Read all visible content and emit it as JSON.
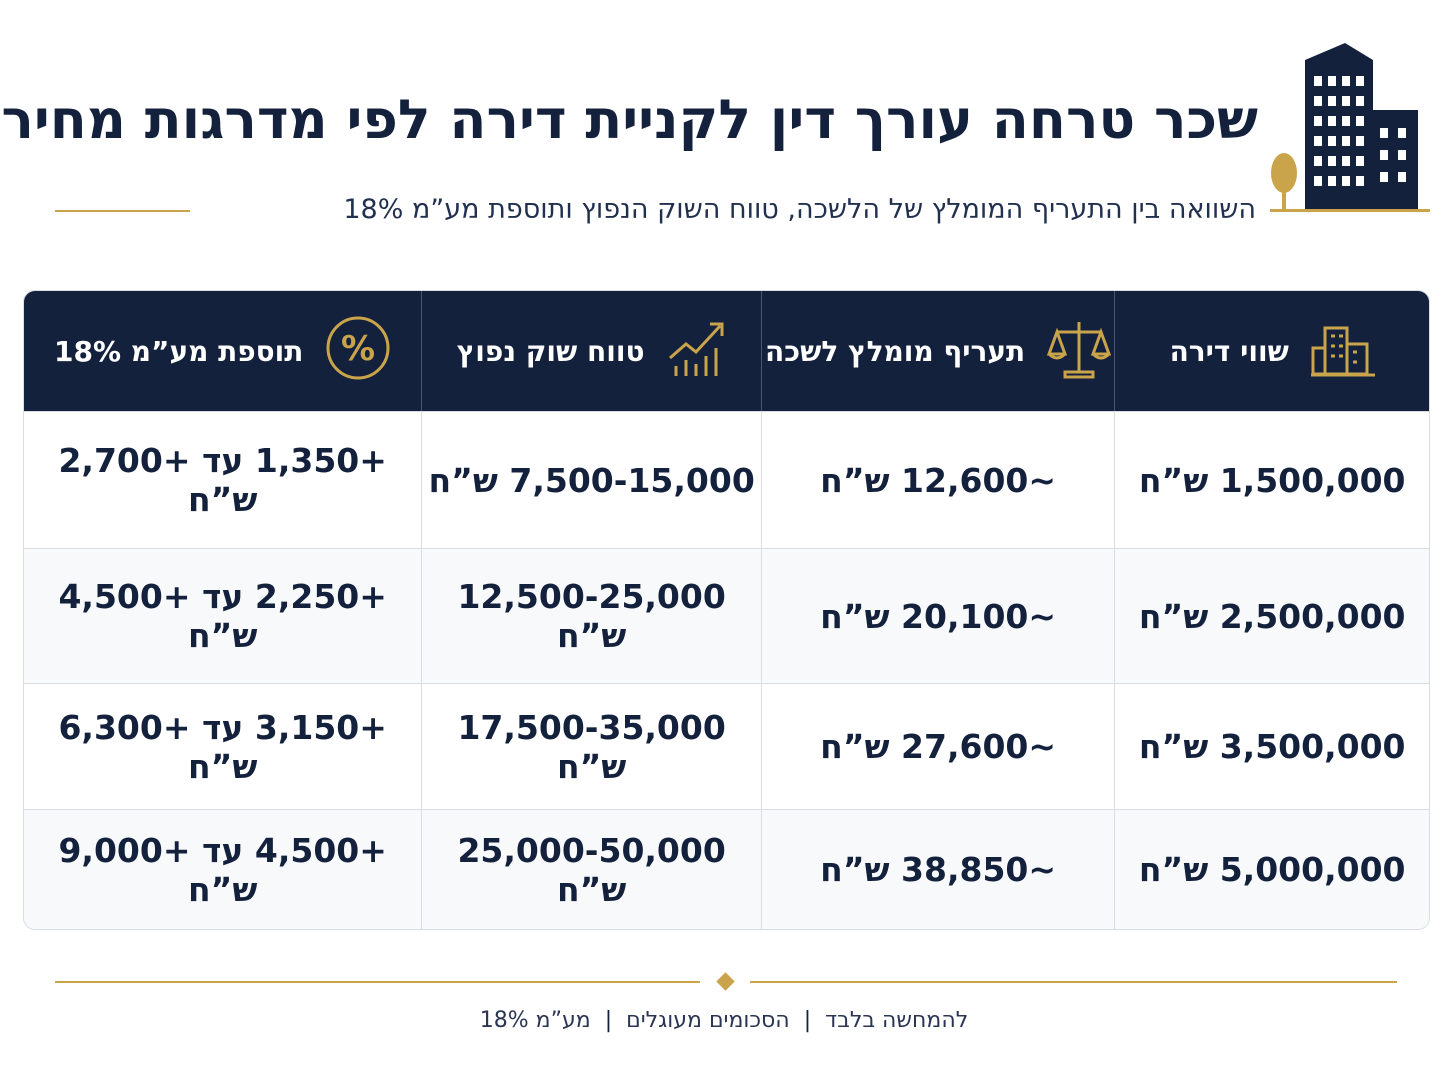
{
  "header": {
    "title": "שכר טרחה עורך דין לקניית דירה לפי מדרגות מחיר",
    "subtitle": "השוואה בין התעריף המומלץ של הלשכה, טווח השוק הנפוץ ותוספת מע”מ 18%"
  },
  "table": {
    "headers": [
      "שווי דירה",
      "תעריף מומלץ לשכה",
      "טווח שוק נפוץ",
      "תוספת מע”מ 18%"
    ],
    "rows": [
      [
        "1,500,000 ש”ח",
        "~12,600 ש”ח",
        "7,500-15,000 ש”ח",
        "+1,350 עד +2,700 ש”ח"
      ],
      [
        "2,500,000 ש”ח",
        "~20,100 ש”ח",
        "12,500-25,000 ש”ח",
        "+2,250 עד +4,500 ש”ח"
      ],
      [
        "3,500,000 ש”ח",
        "~27,600 ש”ח",
        "17,500-35,000 ש”ח",
        "+3,150 עד +6,300 ש”ח"
      ],
      [
        "5,000,000 ש”ח",
        "~38,850 ש”ח",
        "25,000-50,000 ש”ח",
        "+4,500 עד +9,000 ש”ח"
      ]
    ]
  },
  "footer": [
    "להמחשה בלבד",
    "הסכומים מעוגלים",
    "מע”מ 18%"
  ]
}
